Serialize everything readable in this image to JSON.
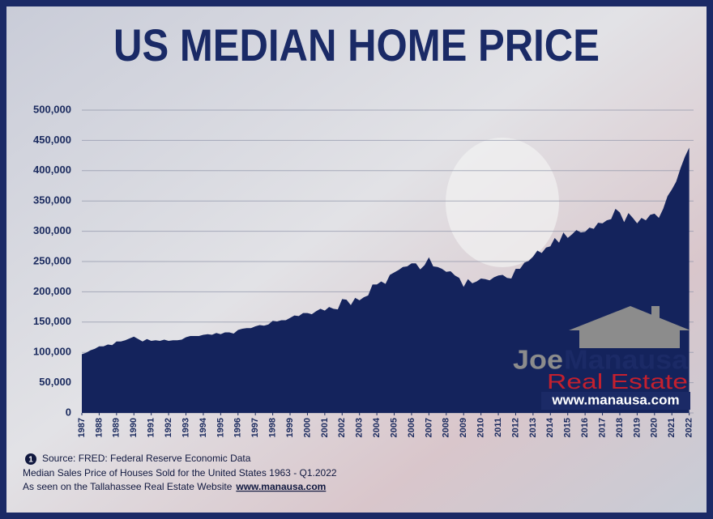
{
  "chart_data": {
    "type": "area",
    "title": "US MEDIAN HOME PRICE",
    "color": "#14235c",
    "x": [
      1987,
      1987.25,
      1987.5,
      1987.75,
      1988,
      1988.25,
      1988.5,
      1988.75,
      1989,
      1989.25,
      1989.5,
      1989.75,
      1990,
      1990.25,
      1990.5,
      1990.75,
      1991,
      1991.25,
      1991.5,
      1991.75,
      1992,
      1992.25,
      1992.5,
      1992.75,
      1993,
      1993.25,
      1993.5,
      1993.75,
      1994,
      1994.25,
      1994.5,
      1994.75,
      1995,
      1995.25,
      1995.5,
      1995.75,
      1996,
      1996.25,
      1996.5,
      1996.75,
      1997,
      1997.25,
      1997.5,
      1997.75,
      1998,
      1998.25,
      1998.5,
      1998.75,
      1999,
      1999.25,
      1999.5,
      1999.75,
      2000,
      2000.25,
      2000.5,
      2000.75,
      2001,
      2001.25,
      2001.5,
      2001.75,
      2002,
      2002.25,
      2002.5,
      2002.75,
      2003,
      2003.25,
      2003.5,
      2003.75,
      2004,
      2004.25,
      2004.5,
      2004.75,
      2005,
      2005.25,
      2005.5,
      2005.75,
      2006,
      2006.25,
      2006.5,
      2006.75,
      2007,
      2007.25,
      2007.5,
      2007.75,
      2008,
      2008.25,
      2008.5,
      2008.75,
      2009,
      2009.25,
      2009.5,
      2009.75,
      2010,
      2010.25,
      2010.5,
      2010.75,
      2011,
      2011.25,
      2011.5,
      2011.75,
      2012,
      2012.25,
      2012.5,
      2012.75,
      2013,
      2013.25,
      2013.5,
      2013.75,
      2014,
      2014.25,
      2014.5,
      2014.75,
      2015,
      2015.25,
      2015.5,
      2015.75,
      2016,
      2016.25,
      2016.5,
      2016.75,
      2017,
      2017.25,
      2017.5,
      2017.75,
      2018,
      2018.25,
      2018.5,
      2018.75,
      2019,
      2019.25,
      2019.5,
      2019.75,
      2020,
      2020.25,
      2020.5,
      2020.75,
      2021,
      2021.25,
      2021.5,
      2021.75,
      2022
    ],
    "values": [
      97000,
      99500,
      103500,
      106000,
      110000,
      110000,
      113000,
      112000,
      118000,
      118000,
      120000,
      123000,
      126000,
      122000,
      118000,
      122000,
      119000,
      120000,
      119000,
      121000,
      119000,
      120000,
      120000,
      121000,
      125000,
      127000,
      127000,
      127000,
      129000,
      130000,
      129000,
      132000,
      130000,
      133000,
      133000,
      131000,
      137000,
      139000,
      140000,
      140000,
      143000,
      145000,
      144000,
      146000,
      152000,
      151000,
      153000,
      153000,
      157000,
      161000,
      160000,
      165000,
      165000,
      163000,
      168000,
      172000,
      169000,
      175000,
      172000,
      171000,
      188000,
      187000,
      178000,
      190000,
      186000,
      191000,
      194000,
      212000,
      212000,
      217000,
      213000,
      228000,
      232000,
      236000,
      241000,
      242000,
      247000,
      247000,
      237000,
      244000,
      257000,
      242000,
      241000,
      238000,
      233000,
      234000,
      227000,
      223000,
      208000,
      221000,
      214000,
      217000,
      222000,
      221000,
      219000,
      224000,
      227000,
      228000,
      223000,
      222000,
      238000,
      238000,
      248000,
      251000,
      258000,
      268000,
      264000,
      273000,
      275000,
      289000,
      281000,
      298000,
      289000,
      295000,
      302000,
      298000,
      299000,
      306000,
      304000,
      314000,
      313000,
      318000,
      320000,
      337000,
      331000,
      315000,
      330000,
      322000,
      313000,
      322000,
      318000,
      327000,
      329000,
      322000,
      337000,
      358000,
      369000,
      382000,
      404000,
      423000,
      438000
    ],
    "xlim": [
      1987,
      2022.25
    ],
    "xticks": [
      1987,
      1988,
      1989,
      1990,
      1991,
      1992,
      1993,
      1994,
      1995,
      1996,
      1997,
      1998,
      1999,
      2000,
      2001,
      2002,
      2003,
      2004,
      2005,
      2006,
      2007,
      2008,
      2009,
      2010,
      2011,
      2012,
      2013,
      2014,
      2015,
      2016,
      2017,
      2018,
      2019,
      2020,
      2021,
      2022
    ],
    "ylim": [
      0,
      500000
    ],
    "yticks": [
      0,
      {
        "value": 50000,
        "label": "50,000"
      },
      {
        "value": 100000,
        "label": "100,000"
      },
      {
        "value": 150000,
        "label": "150,000"
      },
      {
        "value": 200000,
        "label": "200,000"
      },
      {
        "value": 250000,
        "label": "250,000"
      },
      {
        "value": 300000,
        "label": "300,000"
      },
      {
        "value": 350000,
        "label": "350,000"
      },
      {
        "value": 400000,
        "label": "400,000"
      },
      {
        "value": 450000,
        "label": "450,000"
      },
      {
        "value": 500000,
        "label": "500,000"
      }
    ],
    "grid": true
  },
  "logo": {
    "first": "Joe",
    "last": "Manausa",
    "line2": "Real Estate",
    "url": "www.manausa.com"
  },
  "notes": {
    "marker": "1",
    "source": "Source: FRED: Federal Reserve Economic Data",
    "series": "Median Sales Price of Houses Sold for the United States 1963 - Q1.2022",
    "seen": "As seen on the Tallahassee Real Estate Website",
    "link": "www.manausa.com"
  }
}
